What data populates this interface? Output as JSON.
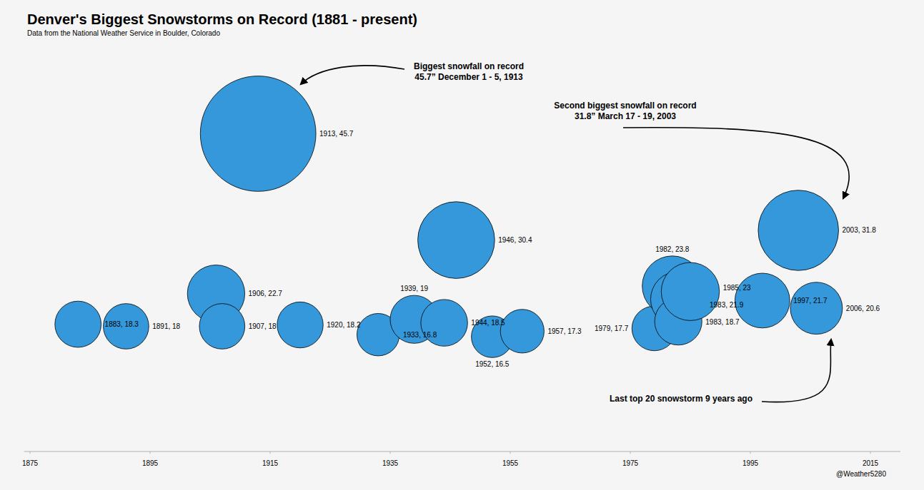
{
  "chart_data": {
    "type": "bubble",
    "title": "Denver's Biggest Snowstorms on Record (1881 - present)",
    "subtitle": "Data from the National Weather Service in Boulder, Colorado",
    "x": [
      1883,
      1891,
      1906,
      1907,
      1913,
      1920,
      1933,
      1939,
      1944,
      1946,
      1952,
      1957,
      1979,
      1982,
      1983,
      1983,
      1985,
      1997,
      2003,
      2006
    ],
    "values": [
      18.3,
      18,
      22.7,
      18,
      45.7,
      18.2,
      16.8,
      19,
      18.5,
      30.4,
      16.5,
      17.3,
      17.7,
      23.8,
      21.9,
      18.7,
      23,
      21.7,
      31.8,
      20.6
    ],
    "sizes": [
      18.3,
      18,
      22.7,
      18,
      45.7,
      18.2,
      16.8,
      19,
      18.5,
      30.4,
      16.5,
      17.3,
      17.7,
      23.8,
      21.9,
      18.7,
      23,
      21.7,
      31.8,
      20.6
    ],
    "value_labels": [
      "1883, 18.3",
      "1891, 18",
      "1906, 22.7",
      "1907, 18",
      "1913, 45.7",
      "1920, 18.2",
      "1933, 16.8",
      "1939, 19",
      "1944, 18.5",
      "1946, 30.4",
      "1952, 16.5",
      "1957, 17.3",
      "1979, 17.7",
      "1982, 23.8",
      "1983, 21.9",
      "1983, 18.7",
      "1985, 23",
      "1997, 21.7",
      "2003, 31.8",
      "2006, 20.6"
    ],
    "xlim": [
      1874,
      2020
    ],
    "xticks": [
      1875,
      1895,
      1915,
      1935,
      1955,
      1975,
      1995,
      2015
    ],
    "ylim": [
      0,
      60
    ],
    "tick_labels": "x",
    "data_labels": true,
    "grid": false,
    "color": "#3498db",
    "annotations": [
      {
        "lines": [
          "Biggest snowfall on record",
          "45.7” December 1 - 5, 1913"
        ]
      },
      {
        "lines": [
          "Second biggest snowfall on record",
          "31.8” March 17 - 19, 2003"
        ]
      },
      {
        "lines": [
          "Last top 20 snowstorm 9 years ago"
        ]
      }
    ],
    "credit": "@Weather5280"
  }
}
